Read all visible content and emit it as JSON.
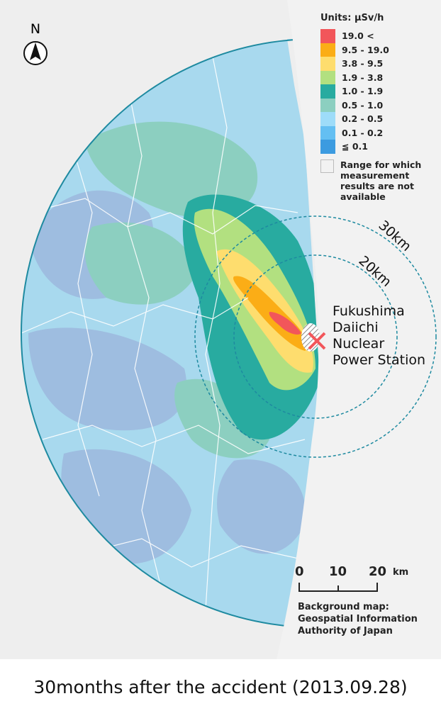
{
  "legend": {
    "title": "Units: µSv/h",
    "items": [
      {
        "label": "19.0 <",
        "color": "#f2565a"
      },
      {
        "label": "9.5 - 19.0",
        "color": "#fbad16"
      },
      {
        "label": "3.8 - 9.5",
        "color": "#fedd6e"
      },
      {
        "label": "1.9 - 3.8",
        "color": "#b2e080"
      },
      {
        "label": "1.0 - 1.9",
        "color": "#28aba0"
      },
      {
        "label": "0.5 - 1.0",
        "color": "#8ccfc0"
      },
      {
        "label": "0.2 - 0.5",
        "color": "#9edcf9"
      },
      {
        "label": "0.1 - 0.2",
        "color": "#64bff2"
      },
      {
        "label": "≦ 0.1",
        "color": "#3c9be0"
      }
    ],
    "not_available": "Range for which measurement results are not available"
  },
  "north_label": "N",
  "plant_label": [
    "Fukushima",
    "Daiichi",
    "Nuclear",
    "Power Station"
  ],
  "ring_labels": {
    "inner": "20km",
    "outer": "30km"
  },
  "scale_bar": {
    "ticks": [
      "0",
      "10",
      "20"
    ],
    "unit": "km"
  },
  "credit": [
    "Background map:",
    "Geospatial Information",
    "Authority of Japan"
  ],
  "caption": "30months after the accident (2013.09.28)"
}
